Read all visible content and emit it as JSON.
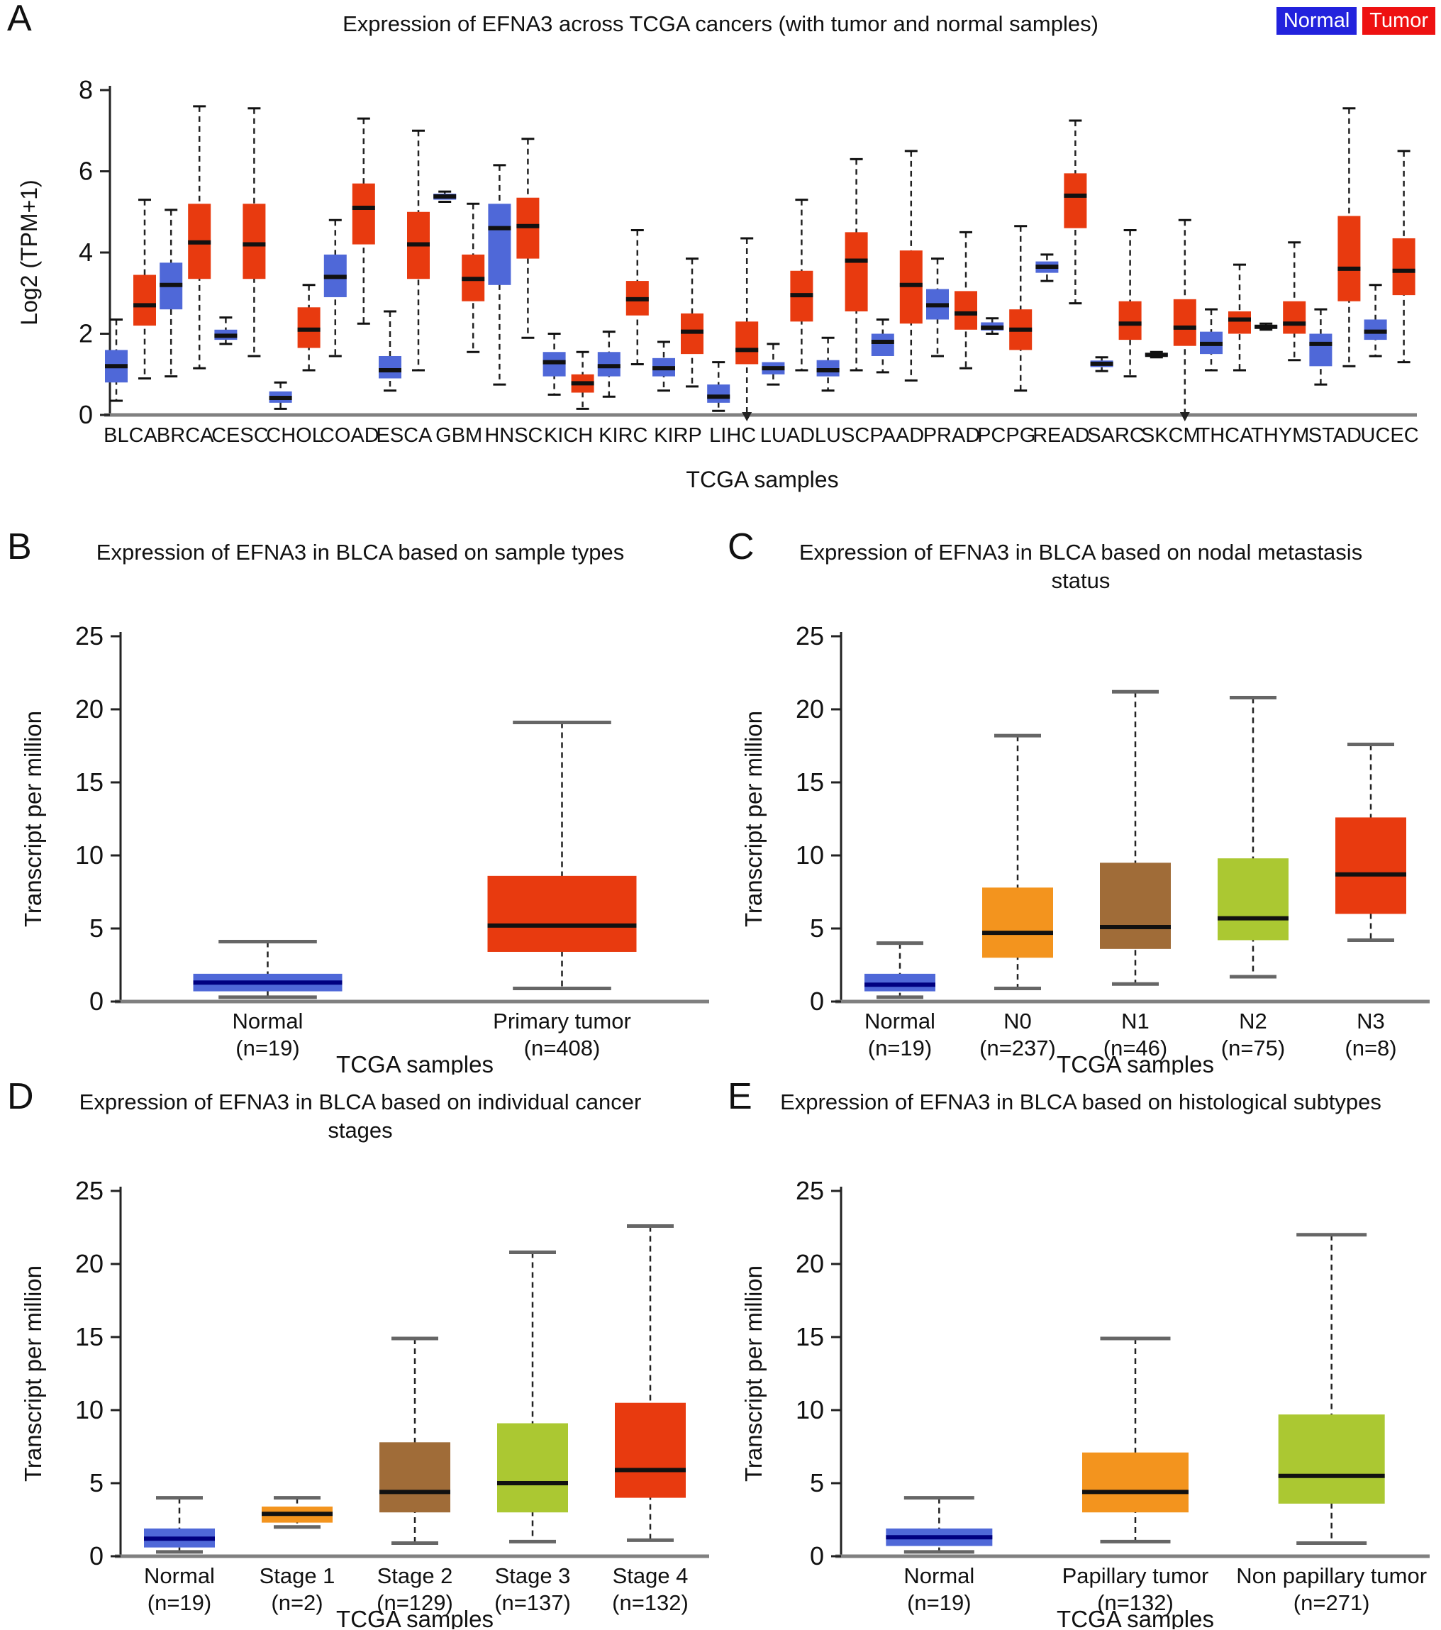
{
  "figure": {
    "panels": [
      {
        "label": "A"
      },
      {
        "label": "B"
      },
      {
        "label": "C"
      },
      {
        "label": "D"
      },
      {
        "label": "E"
      }
    ],
    "colors": {
      "normal_blue": "#4f68d8",
      "tumor_red": "#e83a0f",
      "orange": "#f3941e",
      "brown": "#a06c38",
      "yellow_green": "#abc832",
      "axis_gray": "#808080",
      "cap_gray": "#666666"
    }
  },
  "chart_data": [
    {
      "id": "A",
      "type": "boxplot",
      "title": "Expression of EFNA3 across TCGA cancers (with tumor and normal samples)",
      "ylabel": "Log2 (TPM+1)",
      "xlabel": "TCGA samples",
      "ylim": [
        0,
        8
      ],
      "yticks": [
        0,
        2,
        4,
        6,
        8
      ],
      "legend": [
        {
          "label": "Normal",
          "color": "#2222dd"
        },
        {
          "label": "Tumor",
          "color": "#ee1111"
        }
      ],
      "categories": [
        "BLCA",
        "BRCA",
        "CESC",
        "CHOL",
        "COAD",
        "ESCA",
        "GBM",
        "HNSC",
        "KICH",
        "KIRC",
        "KIRP",
        "LIHC",
        "LUAD",
        "LUSC",
        "PAAD",
        "PRAD",
        "PCPG",
        "READ",
        "SARC",
        "SKCM",
        "THCA",
        "THYM",
        "STAD",
        "UCEC"
      ],
      "series": [
        {
          "name": "Normal",
          "color": "#4f68d8",
          "boxes": [
            [
              0.35,
              0.8,
              1.2,
              1.6,
              2.35
            ],
            [
              0.95,
              2.6,
              3.2,
              3.75,
              5.05
            ],
            [
              1.75,
              1.85,
              1.95,
              2.1,
              2.4
            ],
            [
              0.15,
              0.3,
              0.42,
              0.58,
              0.8
            ],
            [
              1.45,
              2.9,
              3.4,
              3.95,
              4.8
            ],
            [
              0.6,
              0.9,
              1.1,
              1.45,
              2.55
            ],
            [
              5.25,
              5.3,
              5.38,
              5.45,
              5.5
            ],
            [
              0.75,
              3.2,
              4.6,
              5.2,
              6.15
            ],
            [
              0.5,
              0.95,
              1.3,
              1.55,
              2.0
            ],
            [
              0.45,
              0.95,
              1.2,
              1.55,
              2.05
            ],
            [
              0.6,
              0.95,
              1.15,
              1.4,
              1.8
            ],
            [
              0.1,
              0.3,
              0.45,
              0.75,
              1.3
            ],
            [
              0.75,
              1.0,
              1.15,
              1.3,
              1.75
            ],
            [
              0.6,
              0.95,
              1.1,
              1.35,
              1.9
            ],
            [
              1.05,
              1.45,
              1.8,
              2.0,
              2.35
            ],
            [
              1.45,
              2.35,
              2.7,
              3.1,
              3.85
            ],
            [
              2.0,
              2.08,
              2.15,
              2.28,
              2.38
            ],
            [
              3.3,
              3.5,
              3.65,
              3.78,
              3.95
            ],
            [
              1.08,
              1.18,
              1.26,
              1.34,
              1.42
            ],
            [
              1.42,
              1.45,
              1.48,
              1.52,
              1.55
            ],
            [
              1.1,
              1.5,
              1.75,
              2.05,
              2.6
            ],
            [
              2.1,
              2.13,
              2.17,
              2.21,
              2.25
            ],
            [
              0.75,
              1.2,
              1.75,
              2.0,
              2.6
            ],
            [
              1.45,
              1.85,
              2.05,
              2.35,
              3.2
            ]
          ]
        },
        {
          "name": "Tumor",
          "color": "#e83a0f",
          "boxes": [
            [
              0.9,
              2.2,
              2.7,
              3.45,
              5.3
            ],
            [
              1.15,
              3.35,
              4.25,
              5.2,
              7.6
            ],
            [
              1.45,
              3.35,
              4.2,
              5.2,
              7.55
            ],
            [
              1.1,
              1.65,
              2.1,
              2.65,
              3.2
            ],
            [
              2.25,
              4.2,
              5.1,
              5.7,
              7.3
            ],
            [
              1.1,
              3.35,
              4.2,
              5.0,
              7.0
            ],
            [
              1.55,
              2.8,
              3.35,
              3.95,
              5.2
            ],
            [
              1.9,
              3.85,
              4.65,
              5.35,
              6.8
            ],
            [
              0.15,
              0.55,
              0.78,
              1.0,
              1.55
            ],
            [
              1.25,
              2.45,
              2.85,
              3.3,
              4.55
            ],
            [
              0.7,
              1.5,
              2.05,
              2.5,
              3.85
            ],
            [
              0.02,
              1.25,
              1.6,
              2.3,
              4.35
            ],
            [
              1.1,
              2.3,
              2.95,
              3.55,
              5.3
            ],
            [
              1.1,
              2.55,
              3.8,
              4.5,
              6.3
            ],
            [
              0.85,
              2.25,
              3.2,
              4.05,
              6.5
            ],
            [
              1.15,
              2.1,
              2.5,
              3.05,
              4.5
            ],
            [
              0.6,
              1.6,
              2.1,
              2.6,
              4.65
            ],
            [
              2.75,
              4.6,
              5.4,
              5.95,
              7.25
            ],
            [
              0.95,
              1.85,
              2.25,
              2.8,
              4.55
            ],
            [
              0.05,
              1.7,
              2.15,
              2.85,
              4.8
            ],
            [
              1.1,
              2.0,
              2.35,
              2.55,
              3.7
            ],
            [
              1.35,
              2.0,
              2.25,
              2.8,
              4.25
            ],
            [
              1.2,
              2.8,
              3.6,
              4.9,
              7.55
            ],
            [
              1.3,
              2.95,
              3.55,
              4.35,
              6.5
            ]
          ]
        }
      ]
    },
    {
      "id": "B",
      "type": "boxplot",
      "title": "Expression of EFNA3 in BLCA based on sample types",
      "ylabel": "Transcript per million",
      "xlabel": "TCGA samples",
      "ylim": [
        0,
        25
      ],
      "yticks": [
        0,
        5,
        10,
        15,
        20,
        25
      ],
      "groups": [
        {
          "label": "Normal",
          "sublabel": "(n=19)",
          "color": "#4f68d8",
          "median_color": "#000080",
          "box": [
            0.3,
            0.7,
            1.3,
            1.9,
            4.1
          ]
        },
        {
          "label": "Primary tumor",
          "sublabel": "(n=408)",
          "color": "#e83a0f",
          "median_color": "#111111",
          "box": [
            0.9,
            3.4,
            5.2,
            8.6,
            19.1
          ]
        }
      ]
    },
    {
      "id": "C",
      "type": "boxplot",
      "title": "Expression of EFNA3 in BLCA based on nodal metastasis status",
      "ylabel": "Transcript per million",
      "xlabel": "TCGA samples",
      "ylim": [
        0,
        25
      ],
      "yticks": [
        0,
        5,
        10,
        15,
        20,
        25
      ],
      "groups": [
        {
          "label": "Normal",
          "sublabel": "(n=19)",
          "color": "#4f68d8",
          "median_color": "#000080",
          "box": [
            0.3,
            0.7,
            1.15,
            1.9,
            4.0
          ]
        },
        {
          "label": "N0",
          "sublabel": "(n=237)",
          "color": "#f3941e",
          "median_color": "#111111",
          "box": [
            0.9,
            3.0,
            4.7,
            7.8,
            18.2
          ]
        },
        {
          "label": "N1",
          "sublabel": "(n=46)",
          "color": "#a06c38",
          "median_color": "#111111",
          "box": [
            1.2,
            3.6,
            5.1,
            9.5,
            21.2
          ]
        },
        {
          "label": "N2",
          "sublabel": "(n=75)",
          "color": "#abc832",
          "median_color": "#111111",
          "box": [
            1.7,
            4.2,
            5.7,
            9.8,
            20.8
          ]
        },
        {
          "label": "N3",
          "sublabel": "(n=8)",
          "color": "#e83a0f",
          "median_color": "#111111",
          "box": [
            4.2,
            6.0,
            8.7,
            12.6,
            17.6
          ]
        }
      ]
    },
    {
      "id": "D",
      "type": "boxplot",
      "title": "Expression of EFNA3 in BLCA based on individual cancer stages",
      "ylabel": "Transcript per million",
      "xlabel": "TCGA samples",
      "ylim": [
        0,
        25
      ],
      "yticks": [
        0,
        5,
        10,
        15,
        20,
        25
      ],
      "groups": [
        {
          "label": "Normal",
          "sublabel": "(n=19)",
          "color": "#4f68d8",
          "median_color": "#000080",
          "box": [
            0.3,
            0.6,
            1.2,
            1.9,
            4.0
          ]
        },
        {
          "label": "Stage 1",
          "sublabel": "(n=2)",
          "color": "#f3941e",
          "median_color": "#111111",
          "box": [
            2.0,
            2.3,
            2.9,
            3.4,
            4.0
          ]
        },
        {
          "label": "Stage 2",
          "sublabel": "(n=129)",
          "color": "#a06c38",
          "median_color": "#111111",
          "box": [
            0.9,
            3.0,
            4.4,
            7.8,
            14.9
          ]
        },
        {
          "label": "Stage 3",
          "sublabel": "(n=137)",
          "color": "#abc832",
          "median_color": "#111111",
          "box": [
            1.0,
            3.0,
            5.0,
            9.1,
            20.8
          ]
        },
        {
          "label": "Stage 4",
          "sublabel": "(n=132)",
          "color": "#e83a0f",
          "median_color": "#111111",
          "box": [
            1.1,
            4.0,
            5.9,
            10.5,
            22.6
          ]
        }
      ]
    },
    {
      "id": "E",
      "type": "boxplot",
      "title": "Expression of EFNA3 in BLCA based on histological subtypes",
      "ylabel": "Transcript per million",
      "xlabel": "TCGA samples",
      "ylim": [
        0,
        25
      ],
      "yticks": [
        0,
        5,
        10,
        15,
        20,
        25
      ],
      "groups": [
        {
          "label": "Normal",
          "sublabel": "(n=19)",
          "color": "#4f68d8",
          "median_color": "#000080",
          "box": [
            0.3,
            0.7,
            1.3,
            1.9,
            4.0
          ]
        },
        {
          "label": "Papillary tumor",
          "sublabel": "(n=132)",
          "color": "#f3941e",
          "median_color": "#111111",
          "box": [
            1.0,
            3.0,
            4.4,
            7.1,
            14.9
          ]
        },
        {
          "label": "Non papillary tumor",
          "sublabel": "(n=271)",
          "color": "#abc832",
          "median_color": "#111111",
          "box": [
            0.9,
            3.6,
            5.5,
            9.7,
            22.0
          ]
        }
      ]
    }
  ]
}
